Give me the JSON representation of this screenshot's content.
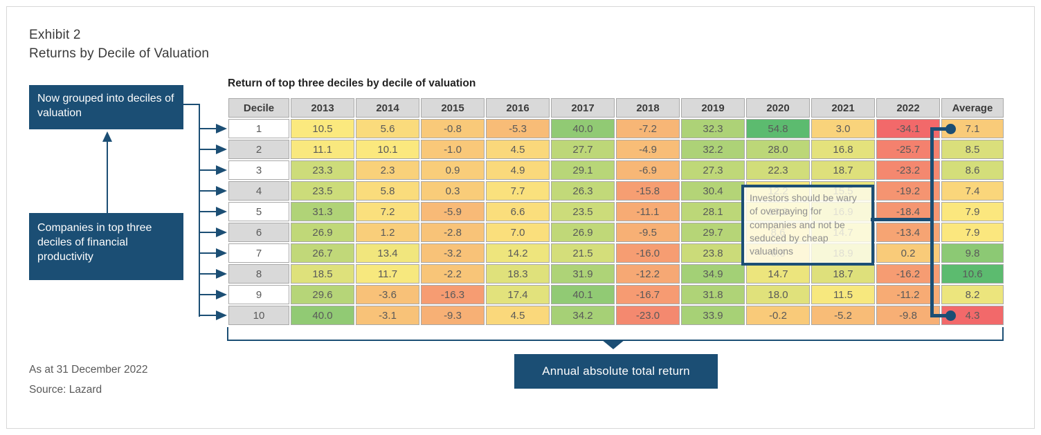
{
  "exhibit": {
    "label": "Exhibit 2",
    "title": "Returns by Decile of Valuation"
  },
  "table_title": "Return of top three deciles by decile of valuation",
  "callouts": {
    "grouped": "Now grouped into deciles of valuation",
    "companies": "Companies in top three deciles of financial productivity",
    "investors_warning": "Investors should be wary of overpaying for companies and not be seduced by cheap valuations",
    "annual_return": "Annual absolute total return"
  },
  "footnotes": [
    "As at 31 December 2022",
    "Source: Lazard"
  ],
  "colors": {
    "navy": "#1b4e74",
    "header_bg": "#d9d9d9",
    "alt_row_bg": "#d9d9d9",
    "cell_border": "#a8a8a8",
    "scale_red": "#f2696a",
    "scale_yellow": "#fbe97e",
    "scale_green": "#5cbb6f",
    "tooltip_bg": "rgba(254,252,238,0.82)",
    "footnote_text": "#595959"
  },
  "chart_data": {
    "type": "heatmap",
    "title": "Return of top three deciles by decile of valuation",
    "columns": [
      "Decile",
      "2013",
      "2014",
      "2015",
      "2016",
      "2017",
      "2018",
      "2019",
      "2020",
      "2021",
      "2022",
      "Average"
    ],
    "rows": [
      {
        "decile": "1",
        "values": [
          10.5,
          5.6,
          -0.8,
          -5.3,
          40.0,
          -7.2,
          32.3,
          54.8,
          3.0,
          -34.1
        ],
        "average": 7.1
      },
      {
        "decile": "2",
        "values": [
          11.1,
          10.1,
          -1.0,
          4.5,
          27.7,
          -4.9,
          32.2,
          28.0,
          16.8,
          -25.7
        ],
        "average": 8.5
      },
      {
        "decile": "3",
        "values": [
          23.3,
          2.3,
          0.9,
          4.9,
          29.1,
          -6.9,
          27.3,
          22.3,
          18.7,
          -23.2
        ],
        "average": 8.6
      },
      {
        "decile": "4",
        "values": [
          23.5,
          5.8,
          0.3,
          7.7,
          26.3,
          -15.8,
          30.4,
          12.2,
          15.5,
          -19.2
        ],
        "average": 7.4
      },
      {
        "decile": "5",
        "values": [
          31.3,
          7.2,
          -5.9,
          6.6,
          23.5,
          -11.1,
          28.1,
          13.2,
          16.9,
          -18.4
        ],
        "average": 7.9
      },
      {
        "decile": "6",
        "values": [
          26.9,
          1.2,
          -2.8,
          7.0,
          26.9,
          -9.5,
          29.7,
          8.6,
          14.7,
          -13.4
        ],
        "average": 7.9
      },
      {
        "decile": "7",
        "values": [
          26.7,
          13.4,
          -3.2,
          14.2,
          21.5,
          -16.0,
          23.8,
          6.8,
          18.9,
          0.2
        ],
        "average": 9.8
      },
      {
        "decile": "8",
        "values": [
          18.5,
          11.7,
          -2.2,
          18.3,
          31.9,
          -12.2,
          34.9,
          14.7,
          18.7,
          -16.2
        ],
        "average": 10.6
      },
      {
        "decile": "9",
        "values": [
          29.6,
          -3.6,
          -16.3,
          17.4,
          40.1,
          -16.7,
          31.8,
          18.0,
          11.5,
          -11.2
        ],
        "average": 8.2
      },
      {
        "decile": "10",
        "values": [
          40.0,
          -3.1,
          -9.3,
          4.5,
          34.2,
          -23.0,
          33.9,
          -0.2,
          -5.2,
          -9.8
        ],
        "average": 4.3
      }
    ],
    "color_scale": {
      "years": {
        "min": -34.1,
        "mid": 10.5,
        "max": 54.8
      },
      "average": {
        "min": 4.3,
        "mid": 7.95,
        "max": 10.6
      }
    },
    "legend_position": "none",
    "grid": true
  }
}
